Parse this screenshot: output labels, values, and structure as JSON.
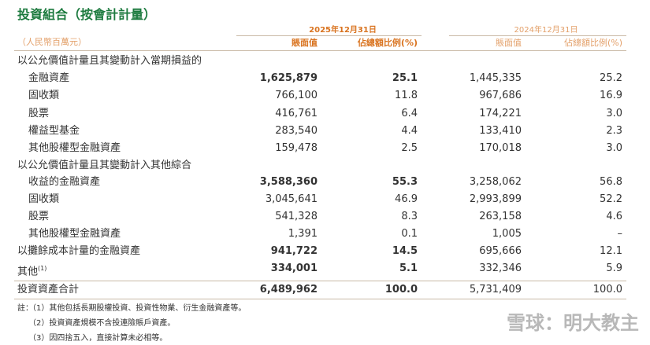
{
  "title": "投資組合（按會計計量）",
  "header": {
    "unit": "（人民幣百萬元）",
    "periods": [
      "2025年12月31日",
      "2024年12月31日"
    ],
    "columns": [
      "賬面值",
      "佔總額比例(%)",
      "賬面值",
      "佔總額比例(%)"
    ]
  },
  "rows": [
    {
      "label": "以公允價值計量且其變動計入當期損益的"
    },
    {
      "label": "金融資產",
      "values": [
        "1,625,879",
        "25.1",
        "1,445,335",
        "25.2"
      ]
    },
    {
      "label": "固收類",
      "values": [
        "766,100",
        "11.8",
        "967,686",
        "16.9"
      ]
    },
    {
      "label": "股票",
      "values": [
        "416,761",
        "6.4",
        "174,221",
        "3.0"
      ]
    },
    {
      "label": "權益型基金",
      "values": [
        "283,540",
        "4.4",
        "133,410",
        "2.3"
      ]
    },
    {
      "label": "其他股權型金融資產",
      "values": [
        "159,478",
        "2.5",
        "170,018",
        "3.0"
      ]
    },
    {
      "label": "以公允價值計量且其變動計入其他綜合"
    },
    {
      "label": "收益的金融資產",
      "values": [
        "3,588,360",
        "55.3",
        "3,258,062",
        "56.8"
      ]
    },
    {
      "label": "固收類",
      "values": [
        "3,045,641",
        "46.9",
        "2,993,899",
        "52.2"
      ]
    },
    {
      "label": "股票",
      "values": [
        "541,328",
        "8.3",
        "263,158",
        "4.6"
      ]
    },
    {
      "label": "其他股權型金融資產",
      "values": [
        "1,391",
        "0.1",
        "1,005",
        "–"
      ]
    },
    {
      "label": "以攤餘成本計量的金融資產",
      "values": [
        "941,722",
        "14.5",
        "695,666",
        "12.1"
      ]
    },
    {
      "label": "其他",
      "note_ref": "(1)",
      "values": [
        "334,001",
        "5.1",
        "332,346",
        "5.9"
      ]
    },
    {
      "label": "投資資產合計",
      "values": [
        "6,489,962",
        "100.0",
        "5,731,409",
        "100.0"
      ]
    }
  ],
  "notes": {
    "label": "註：",
    "items": [
      "（1）其他包括長期股權投資、投資性物業、衍生金融資產等。",
      "（2）投資資產規模不含投連險賬戶資產。",
      "（3）因四捨五入，直接計算未必相等。"
    ]
  },
  "watermark": "雪球：明大教主"
}
